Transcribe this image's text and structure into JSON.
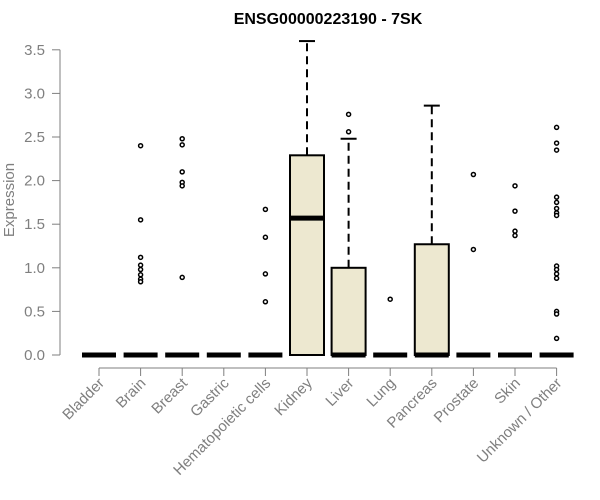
{
  "chart_data": {
    "type": "box",
    "title": "ENSG00000223190 - 7SK",
    "xlabel": "",
    "ylabel": "Expression",
    "ylim": [
      0,
      3.6
    ],
    "yticks": [
      "0.0",
      "0.5",
      "1.0",
      "1.5",
      "2.0",
      "2.5",
      "3.0",
      "3.5"
    ],
    "box_fill": "#ede8d0",
    "categories": [
      "Bladder",
      "Brain",
      "Breast",
      "Gastric",
      "Hematopoietic cells",
      "Kidney",
      "Liver",
      "Lung",
      "Pancreas",
      "Prostate",
      "Skin",
      "Unknown / Other"
    ],
    "boxes": [
      {
        "q1": 0,
        "median": 0,
        "q3": 0,
        "whisker_low": 0,
        "whisker_high": 0,
        "outliers": []
      },
      {
        "q1": 0,
        "median": 0,
        "q3": 0,
        "whisker_low": 0,
        "whisker_high": 0,
        "outliers": [
          2.4,
          1.55,
          1.12,
          1.03,
          0.98,
          0.92,
          0.87,
          0.84
        ]
      },
      {
        "q1": 0,
        "median": 0,
        "q3": 0,
        "whisker_low": 0,
        "whisker_high": 0,
        "outliers": [
          2.48,
          2.41,
          2.1,
          1.98,
          1.94,
          0.89
        ]
      },
      {
        "q1": 0,
        "median": 0,
        "q3": 0,
        "whisker_low": 0,
        "whisker_high": 0,
        "outliers": []
      },
      {
        "q1": 0,
        "median": 0,
        "q3": 0,
        "whisker_low": 0,
        "whisker_high": 0,
        "outliers": [
          1.67,
          1.35,
          0.93,
          0.61
        ]
      },
      {
        "q1": 0,
        "median": 1.57,
        "q3": 2.29,
        "whisker_low": 0,
        "whisker_high": 3.6,
        "outliers": []
      },
      {
        "q1": 0,
        "median": 0,
        "q3": 1.0,
        "whisker_low": 0,
        "whisker_high": 2.48,
        "outliers": [
          2.76,
          2.56
        ]
      },
      {
        "q1": 0,
        "median": 0,
        "q3": 0,
        "whisker_low": 0,
        "whisker_high": 0,
        "outliers": [
          0.64
        ]
      },
      {
        "q1": 0,
        "median": 0,
        "q3": 1.27,
        "whisker_low": 0,
        "whisker_high": 2.86,
        "outliers": []
      },
      {
        "q1": 0,
        "median": 0,
        "q3": 0,
        "whisker_low": 0,
        "whisker_high": 0,
        "outliers": [
          2.07,
          1.21
        ]
      },
      {
        "q1": 0,
        "median": 0,
        "q3": 0,
        "whisker_low": 0,
        "whisker_high": 0,
        "outliers": [
          1.94,
          1.65,
          1.42,
          1.37
        ]
      },
      {
        "q1": 0,
        "median": 0,
        "q3": 0,
        "whisker_low": 0,
        "whisker_high": 0,
        "outliers": [
          2.61,
          2.43,
          2.35,
          1.81,
          1.75,
          1.68,
          1.63,
          1.6,
          1.02,
          0.98,
          0.93,
          0.88,
          0.5,
          0.47,
          0.19
        ]
      }
    ]
  }
}
